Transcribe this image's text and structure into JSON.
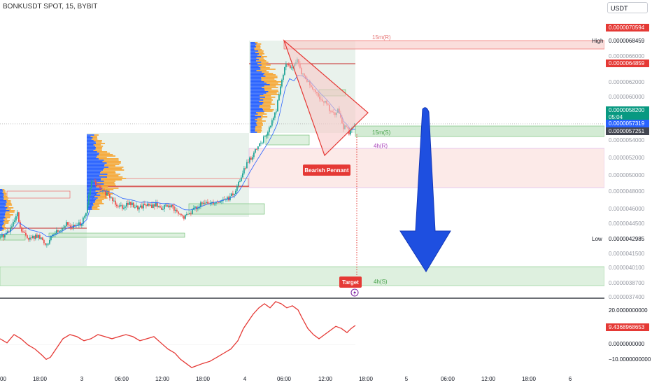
{
  "header": {
    "symbol": "BONKUSDT SPOT, 15, BYBIT",
    "currency": "USDT"
  },
  "colors": {
    "up": "#26a69a",
    "down": "#ef5350",
    "pennant": "#e53935",
    "pennant_fill": "#f8c9c9",
    "arrow": "#1e4fe0",
    "rsi_line": "#e53935",
    "baseline": "#ffffff",
    "volume_profile_up": "#f6a93b",
    "volume_profile_down": "#2962ff",
    "demand": "#c8e6c9",
    "supply": "#f8d0cd",
    "ema": "#2962ff",
    "last_price_badge": "#089981",
    "label_red": "#e53935",
    "label_purple": "#ab47bc"
  },
  "price_axis": {
    "ticks": [
      "0.0000066000",
      "0.0000062000",
      "0.0000060000",
      "0.0000054000",
      "0.0000052000",
      "0.0000050000",
      "0.0000048000",
      "0.0000046000",
      "0.0000044500",
      "0.0000041500",
      "0.0000040100",
      "0.0000038700",
      "0.0000037400"
    ],
    "high_label": "High",
    "high_value": "0.0000068459",
    "low_label": "Low",
    "low_value": "0.0000042985",
    "badges": [
      {
        "value": "0.0000070594",
        "kind": "red"
      },
      {
        "value": "0.0000064859",
        "kind": "red"
      },
      {
        "value": "0.0000058200",
        "kind": "green",
        "sub": "05:04"
      },
      {
        "value": "0.0000057319",
        "kind": "blue"
      },
      {
        "value": "0.0000057251",
        "kind": "gray"
      }
    ]
  },
  "time_axis": [
    "00",
    "18:00",
    "3",
    "06:00",
    "12:00",
    "18:00",
    "4",
    "06:00",
    "12:00",
    "18:00",
    "5",
    "06:00",
    "12:00",
    "18:00",
    "6"
  ],
  "zones": [
    {
      "label": "15m(R)",
      "kind": "supply"
    },
    {
      "label": "15m(S)",
      "kind": "demand"
    },
    {
      "label": "4h(R)",
      "kind": "supply"
    },
    {
      "label": "4h(S)",
      "kind": "demand"
    }
  ],
  "annotations": {
    "pattern": "Bearish Pennant",
    "target": "Target"
  },
  "oscillator": {
    "ticks": [
      "20.0000000000",
      "0.0000000000",
      "−10.0000000000"
    ],
    "current_value": "9.4368968653"
  },
  "chart_data": {
    "type": "candlestick",
    "title": "BONKUSDT SPOT, 15, BYBIT",
    "price_range": [
      3.68e-06,
      7.18e-06
    ],
    "high": 6.8459e-06,
    "low": 4.2985e-06,
    "last": 5.82e-06,
    "key_levels": [
      7.0594e-06,
      6.4859e-06,
      5.82e-06,
      5.7319e-06,
      5.7251e-06
    ],
    "close_path": [
      [
        0,
        4.42e-06
      ],
      [
        8,
        4.45e-06
      ],
      [
        14,
        4.5e-06
      ],
      [
        20,
        4.58e-06
      ],
      [
        26,
        4.7e-06
      ],
      [
        30,
        4.52e-06
      ],
      [
        36,
        4.45e-06
      ],
      [
        44,
        4.4e-06
      ],
      [
        52,
        4.43e-06
      ],
      [
        60,
        4.4e-06
      ],
      [
        66,
        4.33e-06
      ],
      [
        72,
        4.38e-06
      ],
      [
        80,
        4.48e-06
      ],
      [
        88,
        4.52e-06
      ],
      [
        96,
        4.58e-06
      ],
      [
        104,
        4.55e-06
      ],
      [
        112,
        4.56e-06
      ],
      [
        118,
        4.6e-06
      ],
      [
        124,
        4.7e-06
      ],
      [
        128,
        4.92e-06
      ],
      [
        132,
        5.12e-06
      ],
      [
        138,
        5.08e-06
      ],
      [
        146,
        5e-06
      ],
      [
        152,
        4.96e-06
      ],
      [
        160,
        4.9e-06
      ],
      [
        168,
        4.83e-06
      ],
      [
        176,
        4.8e-06
      ],
      [
        184,
        4.84e-06
      ],
      [
        192,
        4.81e-06
      ],
      [
        200,
        4.78e-06
      ],
      [
        208,
        4.83e-06
      ],
      [
        216,
        4.8e-06
      ],
      [
        224,
        4.82e-06
      ],
      [
        232,
        4.78e-06
      ],
      [
        240,
        4.81e-06
      ],
      [
        248,
        4.78e-06
      ],
      [
        256,
        4.7e-06
      ],
      [
        264,
        4.66e-06
      ],
      [
        272,
        4.72e-06
      ],
      [
        280,
        4.78e-06
      ],
      [
        288,
        4.82e-06
      ],
      [
        296,
        4.84e-06
      ],
      [
        304,
        4.85e-06
      ],
      [
        312,
        4.86e-06
      ],
      [
        320,
        4.88e-06
      ],
      [
        328,
        4.9e-06
      ],
      [
        336,
        4.96e-06
      ],
      [
        342,
        5.08e-06
      ],
      [
        348,
        5.22e-06
      ],
      [
        354,
        5.32e-06
      ],
      [
        360,
        5.4e-06
      ],
      [
        366,
        5.48e-06
      ],
      [
        372,
        5.56e-06
      ],
      [
        378,
        5.64e-06
      ],
      [
        384,
        5.72e-06
      ],
      [
        390,
        5.85e-06
      ],
      [
        396,
        6e-06
      ],
      [
        400,
        6.18e-06
      ],
      [
        404,
        6.38e-06
      ],
      [
        408,
        6.52e-06
      ],
      [
        414,
        6.56e-06
      ],
      [
        420,
        6.5e-06
      ],
      [
        426,
        6.6e-06
      ],
      [
        432,
        6.45e-06
      ],
      [
        438,
        6.38e-06
      ],
      [
        444,
        6.3e-06
      ],
      [
        450,
        6.22e-06
      ],
      [
        456,
        6.15e-06
      ],
      [
        462,
        6.12e-06
      ],
      [
        468,
        6.06e-06
      ],
      [
        474,
        5.98e-06
      ],
      [
        480,
        5.92e-06
      ],
      [
        484,
        6e-06
      ],
      [
        488,
        5.88e-06
      ],
      [
        492,
        5.75e-06
      ],
      [
        496,
        5.8e-06
      ],
      [
        500,
        5.72e-06
      ],
      [
        504,
        5.78e-06
      ],
      [
        508,
        5.82e-06
      ]
    ],
    "oscillator_range": [
      -12,
      22
    ],
    "oscillator_path": [
      [
        0,
        3
      ],
      [
        10,
        1
      ],
      [
        20,
        5
      ],
      [
        30,
        3
      ],
      [
        40,
        0
      ],
      [
        50,
        -2
      ],
      [
        60,
        -5
      ],
      [
        66,
        -7
      ],
      [
        72,
        -6
      ],
      [
        80,
        -2
      ],
      [
        90,
        3
      ],
      [
        100,
        5
      ],
      [
        110,
        4
      ],
      [
        120,
        2
      ],
      [
        130,
        3
      ],
      [
        140,
        5
      ],
      [
        150,
        4
      ],
      [
        160,
        3
      ],
      [
        170,
        4
      ],
      [
        180,
        5
      ],
      [
        190,
        4
      ],
      [
        200,
        2
      ],
      [
        210,
        3
      ],
      [
        220,
        4
      ],
      [
        230,
        1
      ],
      [
        240,
        -2
      ],
      [
        250,
        -4
      ],
      [
        258,
        -7
      ],
      [
        266,
        -9
      ],
      [
        274,
        -11
      ],
      [
        282,
        -10
      ],
      [
        290,
        -9
      ],
      [
        300,
        -8
      ],
      [
        310,
        -6
      ],
      [
        320,
        -4
      ],
      [
        330,
        -2
      ],
      [
        340,
        2
      ],
      [
        348,
        8
      ],
      [
        356,
        12
      ],
      [
        362,
        15
      ],
      [
        370,
        18
      ],
      [
        378,
        20
      ],
      [
        386,
        18
      ],
      [
        394,
        21
      ],
      [
        402,
        20
      ],
      [
        410,
        18
      ],
      [
        418,
        19
      ],
      [
        426,
        17
      ],
      [
        432,
        13
      ],
      [
        440,
        8
      ],
      [
        448,
        5
      ],
      [
        456,
        3
      ],
      [
        464,
        5
      ],
      [
        472,
        7
      ],
      [
        480,
        9
      ],
      [
        488,
        8
      ],
      [
        496,
        6
      ],
      [
        502,
        8
      ],
      [
        508,
        9.44
      ]
    ]
  }
}
